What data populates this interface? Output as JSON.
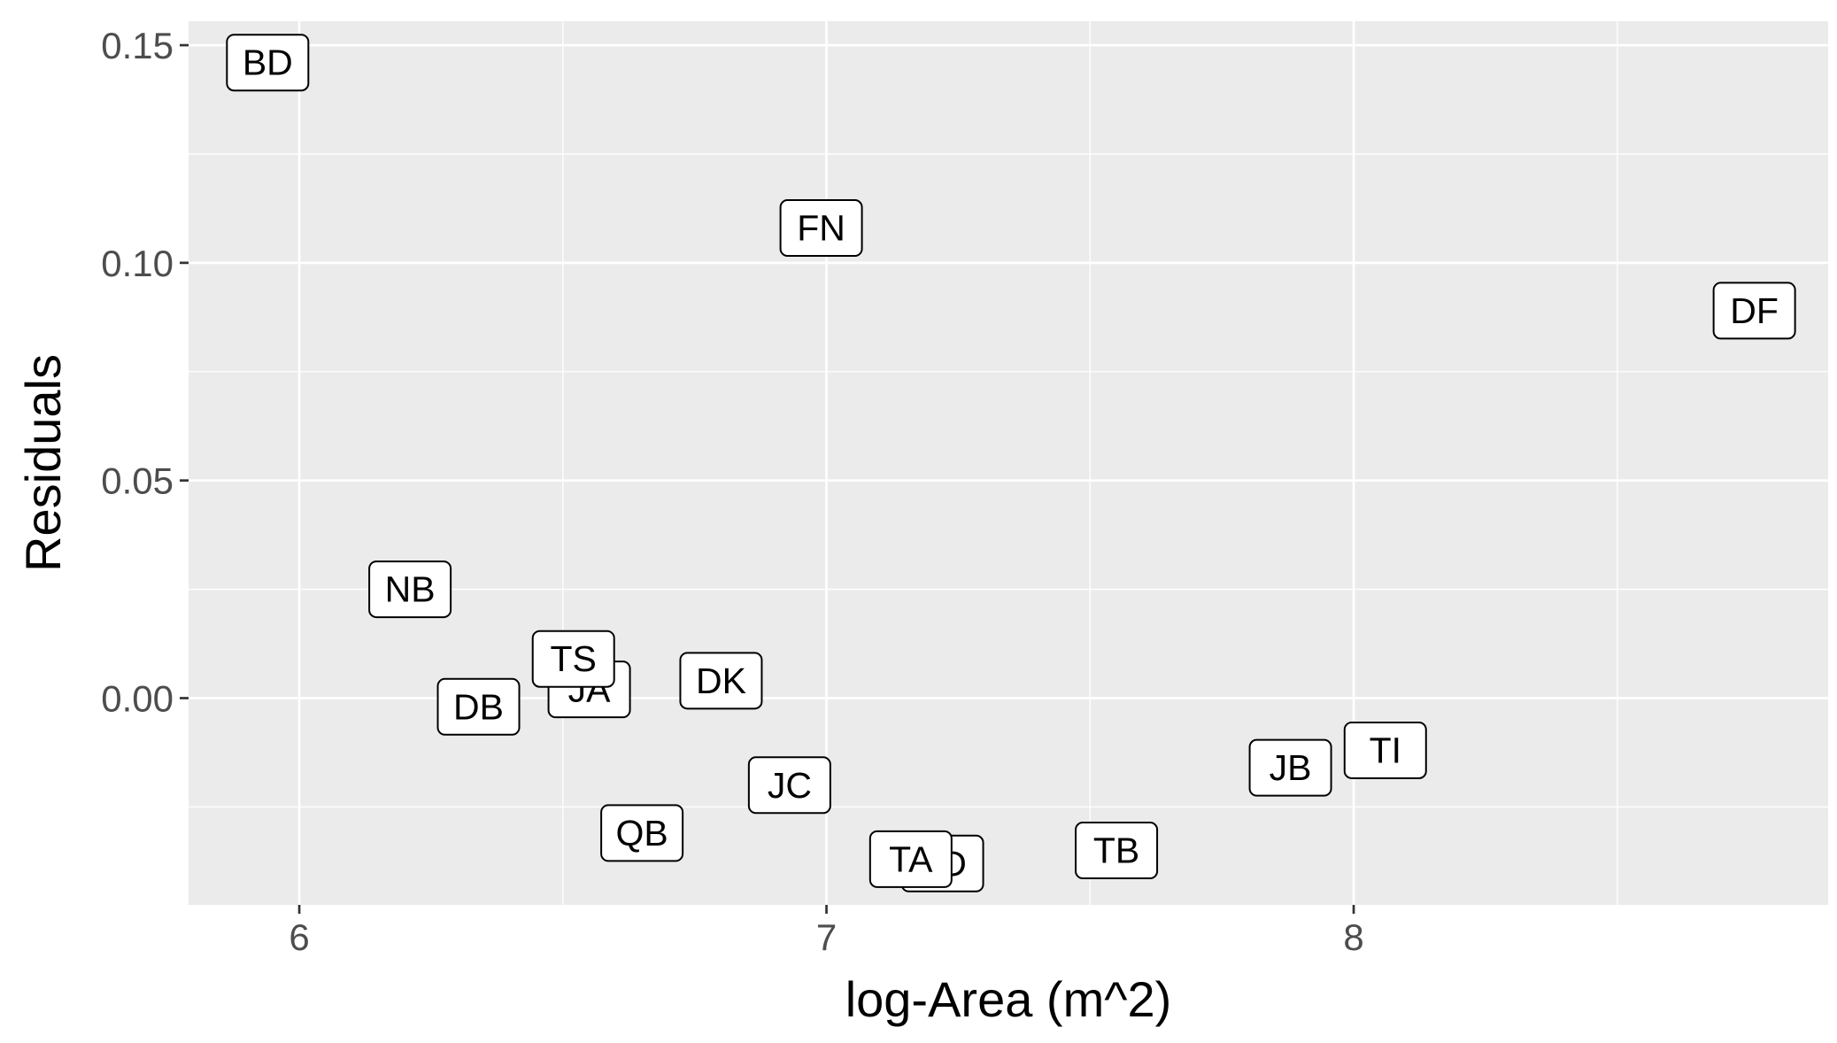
{
  "chart_data": {
    "type": "scatter",
    "title": "",
    "xlabel": "log-Area (m^2)",
    "ylabel": "Residuals",
    "xlim": [
      5.79,
      8.9
    ],
    "ylim": [
      -0.0475,
      0.1555
    ],
    "x_ticks": [
      6,
      7,
      8
    ],
    "x_tick_labels": [
      "6",
      "7",
      "8"
    ],
    "y_ticks": [
      0.0,
      0.05,
      0.1,
      0.15
    ],
    "y_tick_labels": [
      "0.00",
      "0.05",
      "0.10",
      "0.15"
    ],
    "grid": true,
    "point_style": "label",
    "points": [
      {
        "label": "BD",
        "x": 5.94,
        "y": 0.146
      },
      {
        "label": "FN",
        "x": 6.99,
        "y": 0.108
      },
      {
        "label": "DF",
        "x": 8.76,
        "y": 0.089
      },
      {
        "label": "NB",
        "x": 6.21,
        "y": 0.025
      },
      {
        "label": "JA",
        "x": 6.55,
        "y": 0.002
      },
      {
        "label": "TS",
        "x": 6.52,
        "y": 0.009
      },
      {
        "label": "DK",
        "x": 6.8,
        "y": 0.004
      },
      {
        "label": "DB",
        "x": 6.34,
        "y": -0.002
      },
      {
        "label": "JC",
        "x": 6.93,
        "y": -0.02
      },
      {
        "label": "QB",
        "x": 6.65,
        "y": -0.031
      },
      {
        "label": "TD",
        "x": 7.22,
        "y": -0.038
      },
      {
        "label": "TA",
        "x": 7.16,
        "y": -0.037
      },
      {
        "label": "TB",
        "x": 7.55,
        "y": -0.035
      },
      {
        "label": "JB",
        "x": 7.88,
        "y": -0.016
      },
      {
        "label": "TI",
        "x": 8.06,
        "y": -0.012
      }
    ],
    "colors": {
      "panel_background": "#ebebeb",
      "grid_major": "#ffffff",
      "grid_minor": "#ffffff",
      "label_fill": "#ffffff",
      "label_border": "#000000",
      "tick_text": "#4d4d4d",
      "tick_mark": "#333333",
      "axis_title_text": "#000000"
    }
  }
}
